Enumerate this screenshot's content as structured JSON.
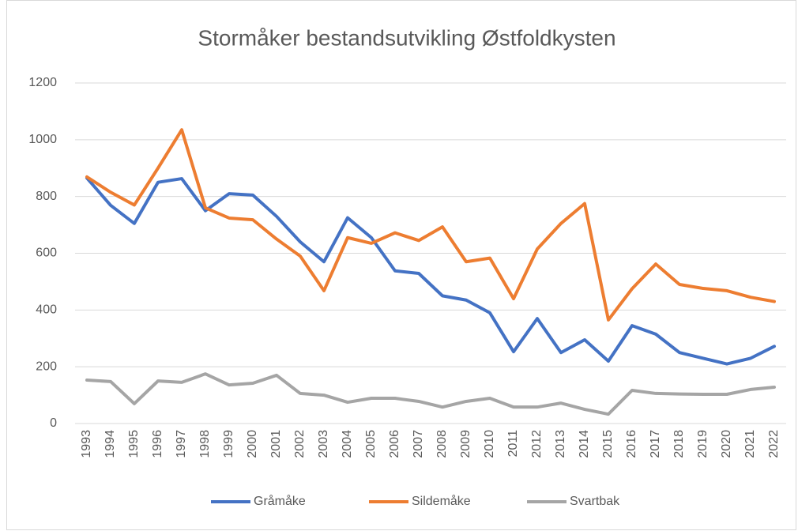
{
  "chart_data": {
    "type": "line",
    "title": "Stormåker bestandsutvikling Østfoldkysten",
    "categories": [
      "1993",
      "1994",
      "1995",
      "1996",
      "1997",
      "1998",
      "1999",
      "2000",
      "2001",
      "2002",
      "2003",
      "2004",
      "2005",
      "2006",
      "2007",
      "2008",
      "2009",
      "2010",
      "2011",
      "2012",
      "2013",
      "2014",
      "2015",
      "2016",
      "2017",
      "2018",
      "2019",
      "2020",
      "2021",
      "2022"
    ],
    "series": [
      {
        "name": "Gråmåke",
        "color": "#4472c4",
        "values": [
          865,
          769,
          705,
          850,
          863,
          750,
          810,
          805,
          730,
          640,
          570,
          725,
          655,
          538,
          529,
          450,
          435,
          390,
          253,
          370,
          250,
          295,
          220,
          345,
          315,
          250,
          230,
          210,
          230,
          272
        ]
      },
      {
        "name": "Sildemåke",
        "color": "#ed7d31",
        "values": [
          869,
          815,
          770,
          900,
          1035,
          760,
          724,
          718,
          650,
          590,
          468,
          655,
          635,
          672,
          645,
          693,
          570,
          583,
          440,
          615,
          705,
          775,
          365,
          475,
          562,
          490,
          476,
          468,
          445,
          430
        ]
      },
      {
        "name": "Svartbak",
        "color": "#a5a5a5",
        "values": [
          153,
          148,
          70,
          150,
          145,
          175,
          136,
          142,
          170,
          106,
          100,
          75,
          89,
          89,
          78,
          58,
          78,
          89,
          58,
          58,
          72,
          50,
          33,
          117,
          106,
          104,
          103,
          103,
          120,
          128
        ]
      }
    ],
    "ylim": [
      0,
      1200
    ],
    "yticks": [
      0,
      200,
      400,
      600,
      800,
      1000,
      1200
    ],
    "grid": true,
    "legend": "bottom"
  }
}
